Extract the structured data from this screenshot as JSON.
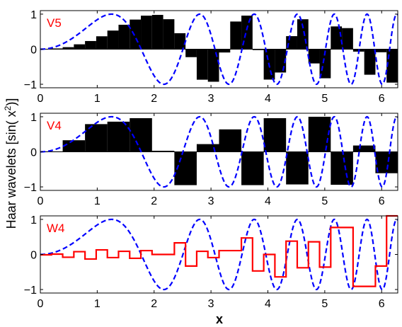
{
  "figure": {
    "ylabel": "Haar wavelets [sin( x²)]",
    "ylabel_main": "Haar wavelets [sin( x",
    "ylabel_sup": "2",
    "ylabel_tail": ")]",
    "xlabel": "x"
  },
  "chart_data": [
    {
      "type": "bar",
      "label": "V5",
      "label_color": "#ff0000",
      "bar_color": "#000000",
      "curve": {
        "function": "sin(x^2)",
        "style": "dashed",
        "color": "#0000ff"
      },
      "xlim": [
        0,
        6.2832
      ],
      "ylim": [
        -1.1,
        1.1
      ],
      "xticks": [
        0,
        1,
        2,
        3,
        4,
        5,
        6
      ],
      "yticks": [
        -1,
        0,
        1
      ],
      "x_start": 0,
      "bin_width": 0.19635,
      "values": [
        0.003,
        0.021,
        0.058,
        0.139,
        0.233,
        0.368,
        0.531,
        0.697,
        0.845,
        0.956,
        0.978,
        0.855,
        0.456,
        -0.227,
        -0.87,
        -0.928,
        -0.094,
        0.789,
        0.957,
        -0.025,
        -0.867,
        -0.665,
        0.372,
        0.854,
        -0.406,
        -0.829,
        0.649,
        0.601,
        -0.069,
        -0.728,
        -0.087,
        -0.953
      ]
    },
    {
      "type": "bar",
      "label": "V4",
      "label_color": "#ff0000",
      "bar_color": "#000000",
      "curve": {
        "function": "sin(x^2)",
        "style": "dashed",
        "color": "#0000ff"
      },
      "xlim": [
        0,
        6.2832
      ],
      "ylim": [
        -1.1,
        1.1
      ],
      "xticks": [
        0,
        1,
        2,
        3,
        4,
        5,
        6
      ],
      "yticks": [
        -1,
        0,
        1
      ],
      "x_start": 0,
      "bin_width": 0.3927,
      "values": [
        0.012,
        0.33,
        0.79,
        0.86,
        0.96,
        0.03,
        -0.95,
        0.22,
        0.64,
        -0.95,
        0.96,
        -0.93,
        1.0,
        -0.94,
        0.18,
        -0.61
      ]
    },
    {
      "type": "line",
      "label": "W4",
      "label_color": "#ff0000",
      "step_color": "#ff0000",
      "curve": {
        "function": "sin(x^2)",
        "style": "dashed",
        "color": "#0000ff"
      },
      "xlim": [
        0,
        6.2832
      ],
      "ylim": [
        -1.1,
        1.1
      ],
      "xticks": [
        0,
        1,
        2,
        3,
        4,
        5,
        6
      ],
      "yticks": [
        -1,
        0,
        1
      ],
      "x_start": 0,
      "bin_width": 0.19635,
      "values": [
        -0.01,
        0.01,
        -0.08,
        0.08,
        -0.13,
        0.13,
        -0.09,
        0.09,
        -0.11,
        0.11,
        0.0,
        0.0,
        0.33,
        -0.33,
        0.09,
        -0.09,
        0.11,
        0.11,
        0.47,
        -0.47,
        0.0,
        -0.64,
        0.38,
        -0.38,
        0.36,
        -0.36,
        0.77,
        0.77,
        -0.91,
        -0.91,
        -0.33,
        1.1
      ]
    }
  ]
}
